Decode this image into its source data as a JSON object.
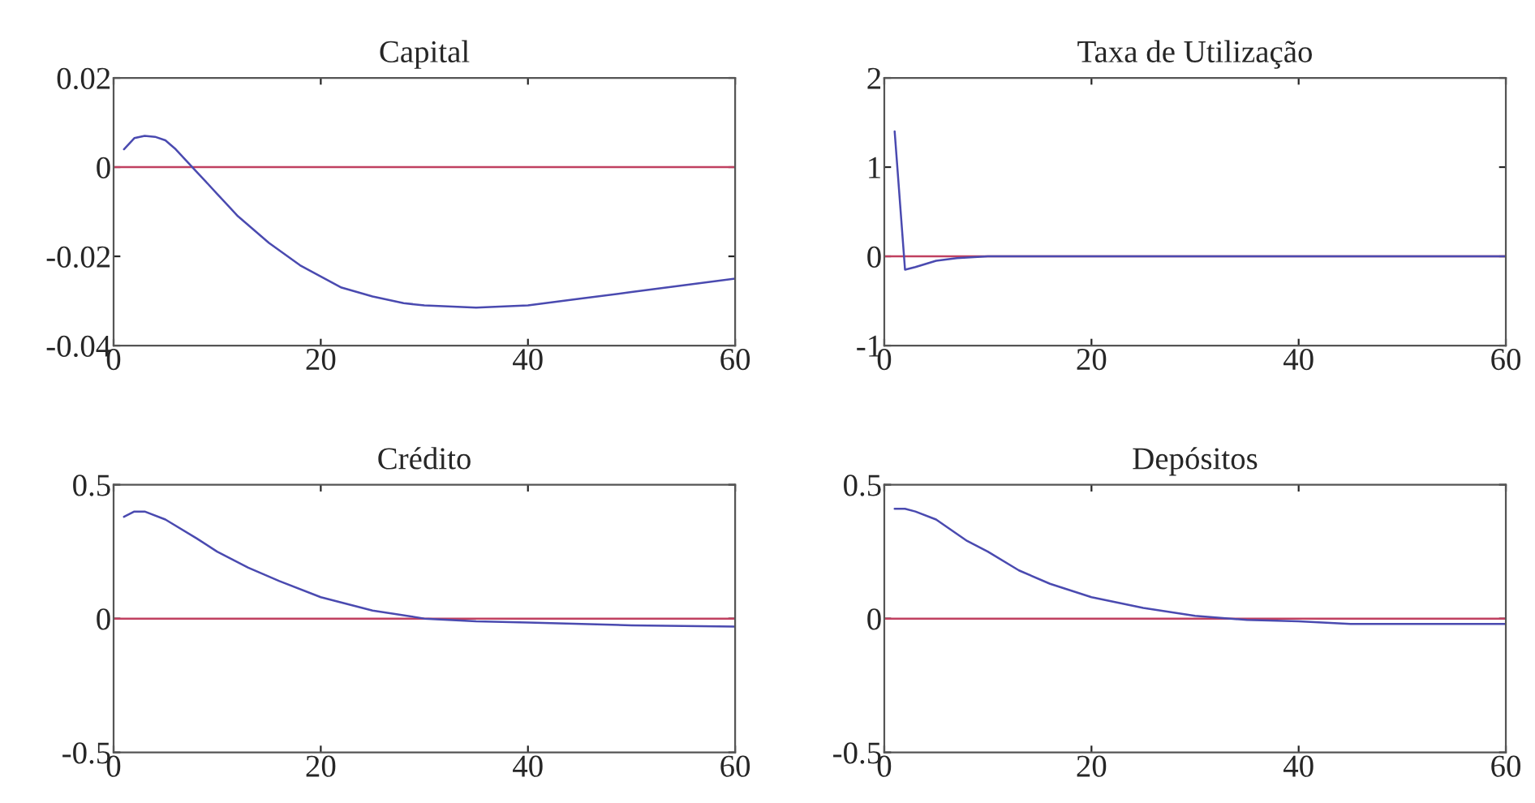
{
  "chart_data": [
    {
      "type": "line",
      "title": "Capital",
      "x": [
        1,
        2,
        3,
        4,
        5,
        6,
        8,
        10,
        12,
        15,
        18,
        20,
        22,
        25,
        28,
        30,
        35,
        40,
        45,
        50,
        55,
        60
      ],
      "series": [
        {
          "color": "#4a4ab0",
          "values": [
            0.004,
            0.0065,
            0.007,
            0.0068,
            0.006,
            0.004,
            -0.001,
            -0.006,
            -0.011,
            -0.017,
            -0.022,
            -0.0245,
            -0.027,
            -0.029,
            -0.0305,
            -0.031,
            -0.0315,
            -0.031,
            -0.0295,
            -0.028,
            -0.0265,
            -0.025
          ]
        }
      ],
      "ref_lines": [
        {
          "axis": "y",
          "value": 0,
          "color": "#c04060"
        }
      ],
      "xlim": [
        0,
        60
      ],
      "xticks": [
        0,
        20,
        40,
        60
      ],
      "ylim": [
        -0.04,
        0.02
      ],
      "yticks": [
        -0.04,
        -0.02,
        0,
        0.02
      ],
      "grid": false,
      "legend": false
    },
    {
      "type": "line",
      "title": "Taxa de Utilização",
      "x": [
        1,
        2,
        3,
        5,
        7,
        10,
        15,
        20,
        30,
        40,
        50,
        60
      ],
      "series": [
        {
          "color": "#4a4ab0",
          "values": [
            1.4,
            -0.15,
            -0.12,
            -0.05,
            -0.02,
            0,
            0,
            0,
            0,
            0,
            0,
            0
          ]
        }
      ],
      "ref_lines": [
        {
          "axis": "y",
          "value": 0,
          "color": "#c04060"
        }
      ],
      "xlim": [
        0,
        60
      ],
      "xticks": [
        0,
        20,
        40,
        60
      ],
      "ylim": [
        -1,
        2
      ],
      "yticks": [
        -1,
        0,
        1,
        2
      ],
      "grid": false,
      "legend": false
    },
    {
      "type": "line",
      "title": "Crédito",
      "x": [
        1,
        2,
        3,
        5,
        8,
        10,
        13,
        16,
        20,
        25,
        30,
        35,
        40,
        50,
        60
      ],
      "series": [
        {
          "color": "#4a4ab0",
          "values": [
            0.38,
            0.4,
            0.4,
            0.37,
            0.3,
            0.25,
            0.19,
            0.14,
            0.08,
            0.03,
            0.0,
            -0.01,
            -0.015,
            -0.025,
            -0.03
          ]
        }
      ],
      "ref_lines": [
        {
          "axis": "y",
          "value": 0,
          "color": "#c04060"
        }
      ],
      "xlim": [
        0,
        60
      ],
      "xticks": [
        0,
        20,
        40,
        60
      ],
      "ylim": [
        -0.5,
        0.5
      ],
      "yticks": [
        -0.5,
        0,
        0.5
      ],
      "grid": false,
      "legend": false
    },
    {
      "type": "line",
      "title": "Depósitos",
      "x": [
        1,
        2,
        3,
        5,
        8,
        10,
        13,
        16,
        20,
        25,
        30,
        35,
        40,
        45,
        60
      ],
      "series": [
        {
          "color": "#4a4ab0",
          "values": [
            0.41,
            0.41,
            0.4,
            0.37,
            0.29,
            0.25,
            0.18,
            0.13,
            0.08,
            0.04,
            0.01,
            -0.005,
            -0.01,
            -0.02,
            -0.02
          ]
        }
      ],
      "ref_lines": [
        {
          "axis": "y",
          "value": 0,
          "color": "#c04060"
        }
      ],
      "xlim": [
        0,
        60
      ],
      "xticks": [
        0,
        20,
        40,
        60
      ],
      "ylim": [
        -0.5,
        0.5
      ],
      "yticks": [
        -0.5,
        0,
        0.5
      ],
      "grid": false,
      "legend": false
    }
  ]
}
